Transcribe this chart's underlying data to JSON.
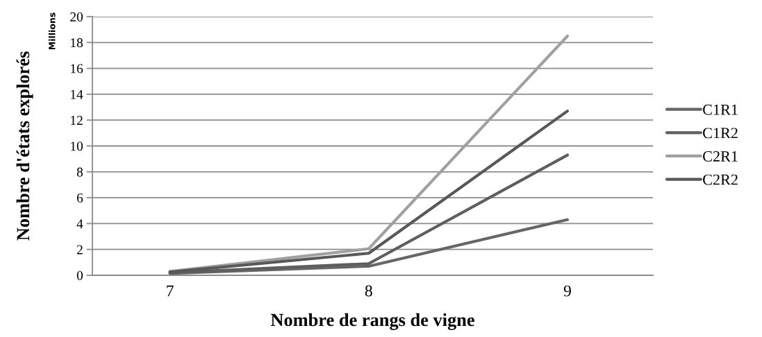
{
  "chart_data": {
    "type": "line",
    "xlabel": "Nombre de rangs de vigne",
    "ylabel": "Nombre d'états explorés",
    "annotations": [
      "Millions"
    ],
    "categories": [
      "7",
      "8",
      "9"
    ],
    "series": [
      {
        "name": "C1R1",
        "color": "#666666",
        "values": [
          0.15,
          0.7,
          4.3
        ]
      },
      {
        "name": "C1R2",
        "color": "#5e5e5e",
        "values": [
          0.2,
          0.9,
          9.3
        ]
      },
      {
        "name": "C2R1",
        "color": "#a0a0a0",
        "values": [
          0.3,
          2.05,
          18.5
        ]
      },
      {
        "name": "C2R2",
        "color": "#585858",
        "values": [
          0.25,
          1.7,
          12.7
        ]
      }
    ],
    "ylim": [
      0,
      20
    ],
    "yticks": [
      0,
      2,
      4,
      6,
      8,
      10,
      12,
      14,
      16,
      18,
      20
    ],
    "grid": "y",
    "legend": "right",
    "marker": "none",
    "line_style": "solid"
  }
}
